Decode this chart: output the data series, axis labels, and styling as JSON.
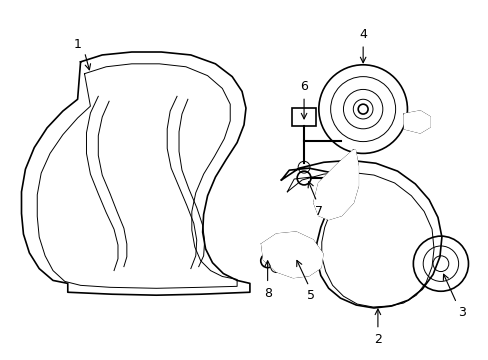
{
  "background_color": "#ffffff",
  "line_color": "#000000",
  "lw": 1.2,
  "tlw": 0.7,
  "figsize": [
    4.89,
    3.6
  ],
  "dpi": 100
}
